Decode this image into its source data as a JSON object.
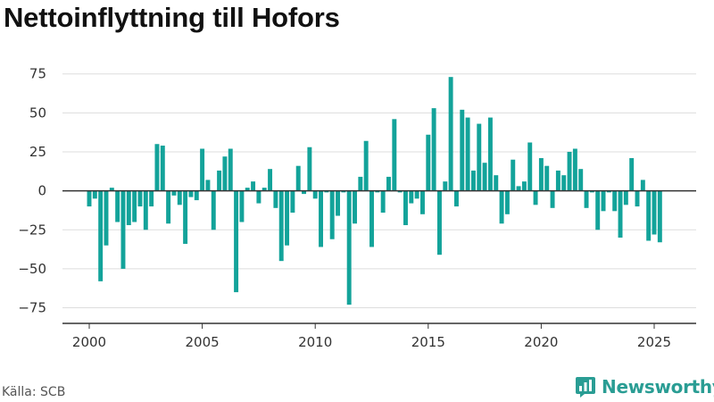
{
  "title": "Nettoinflyttning till Hofors",
  "source": "Källa: SCB",
  "brand": {
    "name": "Newsworthy",
    "logo_icon": "newsworthy-chart-logo-icon"
  },
  "colors": {
    "bar": "#13a39a",
    "grid": "#dddddd",
    "axis": "#333333",
    "brand": "#2a9d94"
  },
  "chart_data": {
    "type": "bar",
    "title": "Nettoinflyttning till Hofors",
    "xlabel": "",
    "ylabel": "",
    "ylim": [
      -85,
      88
    ],
    "xlim": [
      1999.2,
      2026.8
    ],
    "y_ticks": [
      75,
      50,
      25,
      0,
      -25,
      -50,
      -75
    ],
    "y_tick_labels": [
      "75",
      "50",
      "25",
      "0",
      "−25",
      "−50",
      "−75"
    ],
    "x_ticks": [
      2000,
      2005,
      2010,
      2015,
      2020,
      2025
    ],
    "x_tick_labels": [
      "2000",
      "2005",
      "2010",
      "2015",
      "2020",
      "2025"
    ],
    "grid": "horizontal",
    "legend": "none",
    "frequency": "quarterly",
    "x_start": 2000.0,
    "x_step": 0.25,
    "values": [
      -10,
      -5,
      -58,
      -35,
      2,
      -20,
      -50,
      -22,
      -20,
      -10,
      -25,
      -10,
      30,
      29,
      -21,
      -3,
      -9,
      -34,
      -4,
      -6,
      27,
      7,
      -25,
      13,
      22,
      27,
      -65,
      -20,
      2,
      6,
      -8,
      2,
      14,
      -11,
      -45,
      -35,
      -14,
      16,
      -2,
      28,
      -5,
      -36,
      -1,
      -31,
      -16,
      -1,
      -73,
      -21,
      9,
      32,
      -36,
      -1,
      -14,
      9,
      46,
      -1,
      -22,
      -8,
      -5,
      -15,
      36,
      53,
      -41,
      6,
      73,
      -10,
      52,
      47,
      13,
      43,
      18,
      47,
      10,
      -21,
      -15,
      20,
      3,
      6,
      31,
      -9,
      21,
      16,
      -11,
      13,
      10,
      25,
      27,
      14,
      -11,
      -1,
      -25,
      -13,
      -1,
      -13,
      -30,
      -9,
      21,
      -10,
      7,
      -32,
      -28,
      -33
    ]
  }
}
